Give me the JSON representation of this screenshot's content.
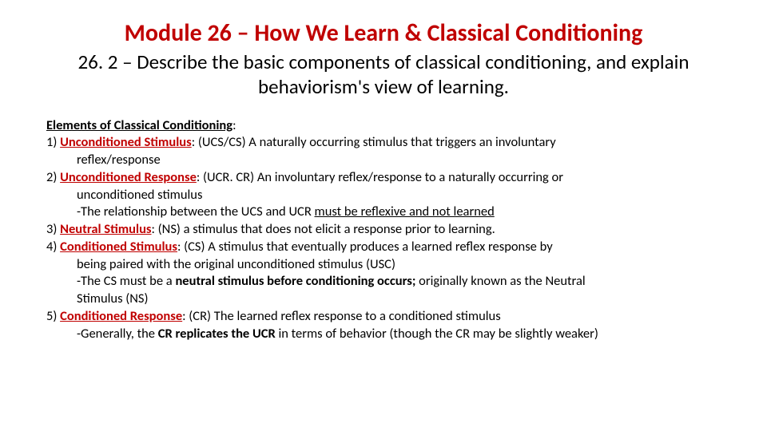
{
  "colors": {
    "accent": "#c00000",
    "text": "#000000",
    "background": "#ffffff"
  },
  "typography": {
    "title_fontsize": 30,
    "subtitle_fontsize": 25,
    "body_fontsize": 16.5,
    "font_family": "Calibri"
  },
  "title": "Module 26 – How We Learn & Classical Conditioning",
  "subtitle": "26. 2 – Describe the basic components of classical conditioning, and explain behaviorism's view of learning.",
  "section_head": "Elements of Classical Conditioning",
  "items": [
    {
      "num": "1)",
      "term": "Unconditioned Stimulus",
      "def_line1": ":  (UCS/CS) A naturally occurring stimulus that triggers an involuntary",
      "cont1": "reflex/response"
    },
    {
      "num": "2)",
      "term": "Unconditioned Response",
      "def_line1": ":  (UCR. CR) An involuntary reflex/response to a naturally occurring or",
      "cont1": "unconditioned stimulus",
      "note1_pre": "-The relationship between the UCS and UCR ",
      "note1_u": "must be reflexive and not learned"
    },
    {
      "num": "3)",
      "term": "Neutral Stimulus",
      "def_line1": ":  (NS) a stimulus that does not elicit a response prior to learning."
    },
    {
      "num": "4)",
      "term": "Conditioned Stimulus",
      "def_line1": ":  (CS) A stimulus that eventually produces a learned reflex response by",
      "cont1": "being paired with the original unconditioned stimulus (USC)",
      "note1_pre": "-The CS must be a ",
      "note1_b": "neutral stimulus before conditioning occurs;",
      "note1_post": " originally known as the Neutral",
      "note2": "Stimulus (NS)"
    },
    {
      "num": "5)",
      "term": "Conditioned Response",
      "def_line1": ":  (CR) The learned reflex response to a conditioned stimulus",
      "note1_pre": "-Generally, the ",
      "note1_b": "CR replicates the UCR",
      "note1_post": " in terms of behavior (though the CR may be slightly weaker)"
    }
  ]
}
